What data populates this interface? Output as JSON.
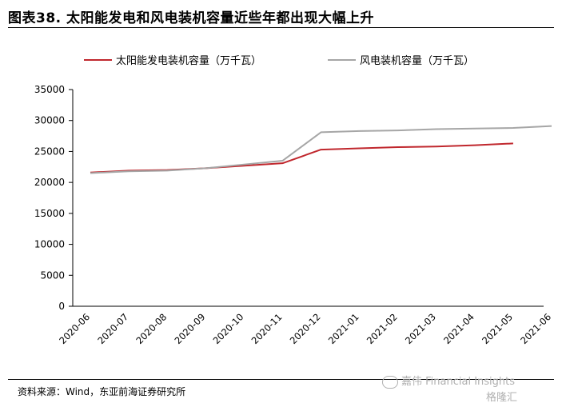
{
  "title": "图表38. 太阳能发电和风电装机容量近些年都出现大幅上升",
  "source": "资料来源：Wind，东亚前海证券研究所",
  "watermark": {
    "brand": "嘉伟 Financial Insights",
    "logo_text": "格隆汇"
  },
  "colors": {
    "solar": "#c0272d",
    "wind": "#a6a6a6",
    "axis": "#000000"
  },
  "chart_data": {
    "type": "line",
    "categories": [
      "2020-06",
      "2020-07",
      "2020-08",
      "2020-09",
      "2020-10",
      "2020-11",
      "2020-12",
      "2021-01",
      "2021-02",
      "2021-03",
      "2021-04",
      "2021-05",
      "2021-06"
    ],
    "series": [
      {
        "name": "太阳能发电装机容量（万千瓦）",
        "values": [
          21600,
          21900,
          22000,
          22300,
          22700,
          23100,
          25300,
          25500,
          25700,
          25800,
          26000,
          26300,
          null
        ]
      },
      {
        "name": "风电装机容量（万千瓦）",
        "values": [
          21500,
          21800,
          21900,
          22300,
          22900,
          23500,
          28100,
          28300,
          28400,
          28600,
          28700,
          28800,
          29100
        ]
      }
    ],
    "yticks": [
      0,
      5000,
      10000,
      15000,
      20000,
      25000,
      30000,
      35000
    ],
    "ylim": [
      0,
      35000
    ],
    "grid": false,
    "legend_position": "top"
  }
}
